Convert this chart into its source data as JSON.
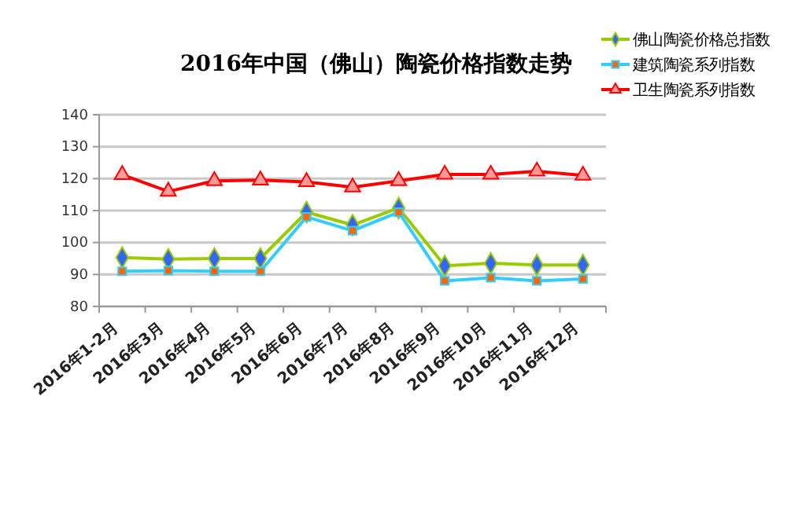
{
  "chart_data": {
    "type": "line",
    "title": "2016年中国（佛山）陶瓷价格指数走势",
    "categories": [
      "2016年1-2月",
      "2016年3月",
      "2016年4月",
      "2016年5月",
      "2016年6月",
      "2016年7月",
      "2016年8月",
      "2016年9月",
      "2016年10月",
      "2016年11月",
      "2016年12月"
    ],
    "series": [
      {
        "name": "佛山陶瓷价格总指数",
        "color": "#99cc00",
        "marker": "diamond",
        "values": [
          95.3,
          94.8,
          95,
          95,
          109.5,
          105.5,
          110.8,
          92.7,
          93.5,
          93,
          93
        ]
      },
      {
        "name": "建筑陶瓷系列指数",
        "color": "#33ccff",
        "marker": "square",
        "values": [
          91,
          91.2,
          91,
          91,
          108,
          103.7,
          109.5,
          88,
          89,
          88,
          88.6
        ]
      },
      {
        "name": "卫生陶瓷系列指数",
        "color": "#ff0000",
        "marker": "triangle",
        "values": [
          121.2,
          116,
          119.3,
          119.5,
          119,
          117.3,
          119.3,
          121.3,
          121.3,
          122.3,
          121
        ]
      }
    ],
    "ylim": [
      80,
      140
    ],
    "yticks": [
      80,
      90,
      100,
      110,
      120,
      130,
      140
    ],
    "grid": "y",
    "legend": "top right",
    "line_style": "solid"
  }
}
